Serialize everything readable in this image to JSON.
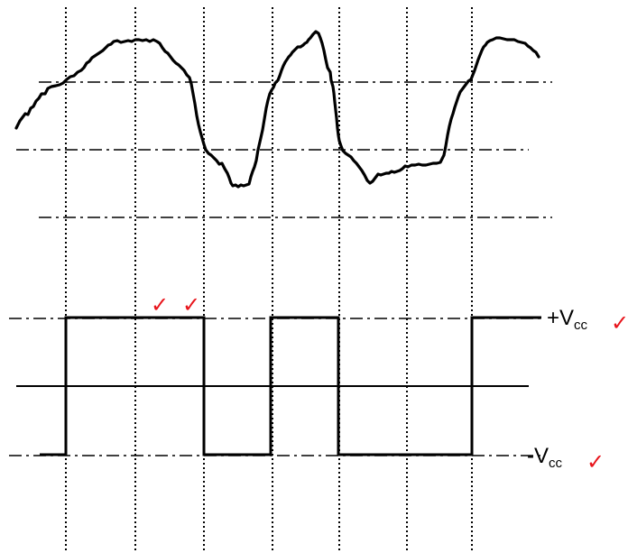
{
  "labels": {
    "vcc_pos": {
      "prefix": "+V",
      "sub": "cc"
    },
    "vcc_neg": {
      "prefix": "-V",
      "sub": "cc"
    }
  },
  "check_mark": "✓",
  "colors": {
    "waveform": "#000000",
    "grid": "#000000",
    "check": "#e8141b"
  }
}
